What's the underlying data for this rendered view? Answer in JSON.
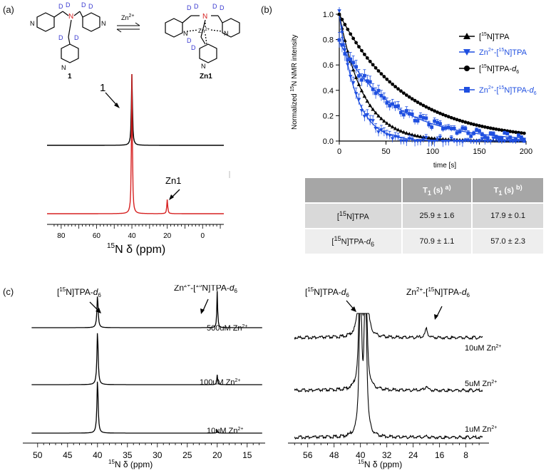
{
  "panel_labels": {
    "a": "(a)",
    "b": "(b)",
    "c": "(c)"
  },
  "scheme": {
    "d": "D",
    "n": "N",
    "reagent": "Zn",
    "reagent_charge": "2+",
    "compound_left": "1",
    "compound_right": "Zn1",
    "metal": "Zn",
    "metal_charge": "2+"
  },
  "spectrum_a": {
    "label_1": "1",
    "label_zn1": "Zn1",
    "ticks": [
      "80",
      "60",
      "40",
      "20",
      "0"
    ],
    "xlabel_pre": "15",
    "xlabel_main": "N δ (ppm)",
    "colors": {
      "free": "#000000",
      "zn": "#d62020"
    }
  },
  "chart_data": [
    {
      "type": "line",
      "title": "",
      "xlabel": "time [s]",
      "ylabel": "Normalized 15N NMR intensity",
      "xlim": [
        0,
        200
      ],
      "ylim": [
        0,
        1.0
      ],
      "x_ticks": [
        "0",
        "50",
        "100",
        "150",
        "200"
      ],
      "y_ticks": [
        "0.0",
        "0.2",
        "0.4",
        "0.6",
        "0.8",
        "1.0"
      ],
      "legend_position": "top-right",
      "series": [
        {
          "name": "[15N]TPA",
          "color": "#000000",
          "marker": "triangle-up",
          "t1": 25.9,
          "amplitude": 1.0
        },
        {
          "name": "Zn2+-[15N]TPA",
          "color": "#1f4fe0",
          "marker": "triangle-down",
          "t1": 17.9,
          "amplitude": 1.0
        },
        {
          "name": "[15N]TPA-d6",
          "color": "#000000",
          "marker": "circle",
          "t1": 70.9,
          "amplitude": 1.0
        },
        {
          "name": "Zn2+-[15N]TPA-d6",
          "color": "#1f4fe0",
          "marker": "square",
          "t1": 57.0,
          "amplitude": 0.78
        }
      ]
    },
    {
      "type": "line",
      "title": "",
      "xlabel": "15N δ (ppm)",
      "ylabel": "",
      "xlim": [
        52,
        12
      ],
      "x_ticks": [
        "50",
        "45",
        "40",
        "35",
        "30",
        "25",
        "20",
        "15"
      ],
      "series": [
        {
          "name": "500uM Zn2+",
          "free_ppm": 40,
          "bound_ppm": 20,
          "free_height": 1.0,
          "bound_height": 1.05
        },
        {
          "name": "100uM Zn2+",
          "free_ppm": 40,
          "bound_ppm": 20,
          "free_height": 1.25,
          "bound_height": 0.3
        },
        {
          "name": "10uM Zn2+",
          "free_ppm": 40,
          "bound_ppm": 20,
          "free_height": 1.35,
          "bound_height": 0.06
        }
      ]
    },
    {
      "type": "line",
      "title": "",
      "xlabel": "15N δ (ppm)",
      "ylabel": "",
      "xlim": [
        62,
        1
      ],
      "x_ticks": [
        "56",
        "48",
        "40",
        "32",
        "24",
        "16",
        "8"
      ],
      "series": [
        {
          "name": "10uM Zn2+",
          "free_ppm": 40,
          "bound_ppm": 20,
          "bound_height": 0.35
        },
        {
          "name": "5uM Zn2+",
          "free_ppm": 40,
          "bound_ppm": 20,
          "bound_height": 0.2
        },
        {
          "name": "1uM Zn2+",
          "free_ppm": 40,
          "bound_ppm": 20,
          "bound_height": 0.05
        }
      ]
    }
  ],
  "legend_b": [
    {
      "pre": "[",
      "sup": "15",
      "main": "N]TPA",
      "suffix": "",
      "d": ""
    },
    {
      "pre": "Zn",
      "sup0": "2+",
      "mid": "-[",
      "sup": "15",
      "main": "N]TPA",
      "suffix": "",
      "d": ""
    },
    {
      "pre": "[",
      "sup": "15",
      "main": "N]TPA-",
      "suffix": "",
      "d": "d",
      "sub": "6"
    },
    {
      "pre": "Zn",
      "sup0": "2+",
      "mid": "-[",
      "sup": "15",
      "main": "N]TPA-",
      "d": "d",
      "sub": "6"
    }
  ],
  "table_b": {
    "headers": [
      "",
      "T1 (s) a)",
      "T1 (s) b)"
    ],
    "h_t": "T",
    "h_sub": "1",
    "h_unit": " (s) ",
    "h_a": "a)",
    "h_b": "b)",
    "rows": [
      {
        "name_pre": "[",
        "name_sup": "15",
        "name_main": "N]TPA",
        "name_d": "",
        "name_sub": "",
        "v1": "25.9 ± 1.6",
        "v2": "17.9 ± 0.1"
      },
      {
        "name_pre": "[",
        "name_sup": "15",
        "name_main": "N]TPA-",
        "name_d": "d",
        "name_sub": "6",
        "v1": "70.9 ± 1.1",
        "v2": "57.0 ± 2.3"
      }
    ]
  },
  "panel_c": {
    "label_free_pre": "[",
    "label_free_sup": "15",
    "label_free_main": "N]TPA-",
    "label_free_d": "d",
    "label_free_sub": "6",
    "label_bound_zn": "Zn",
    "label_bound_charge": "2+",
    "label_bound_mid": "-[",
    "label_bound_sup": "15",
    "label_bound_main": "N]TPA-",
    "label_bound_d": "d",
    "label_bound_sub": "6",
    "left_conc": [
      "500uM",
      "100uM",
      "10uM"
    ],
    "right_conc": [
      "10uM",
      "5uM",
      "1uM"
    ],
    "zn": "Zn",
    "charge": "2+",
    "xlabel_sup": "15",
    "xlabel_main": "N δ (ppm)"
  }
}
